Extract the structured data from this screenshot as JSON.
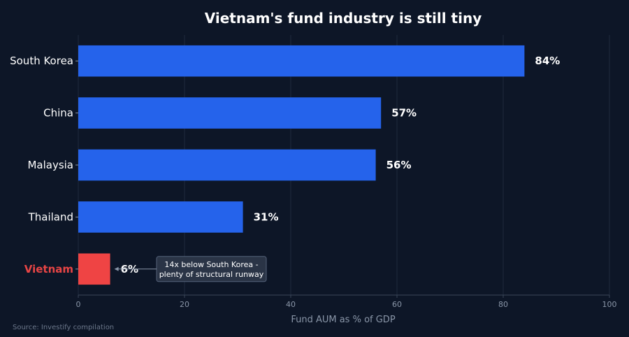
{
  "chart_data": {
    "type": "bar",
    "orientation": "horizontal",
    "title": "Vietnam's fund industry is still tiny",
    "xlabel": "Fund AUM as % of GDP",
    "ylabel": "",
    "xlim": [
      0,
      100
    ],
    "xticks": [
      0,
      20,
      40,
      60,
      80,
      100
    ],
    "grid": true,
    "categories": [
      "South Korea",
      "China",
      "Malaysia",
      "Thailand",
      "Vietnam"
    ],
    "values": [
      84,
      57,
      56,
      31,
      6
    ],
    "value_labels": [
      "84%",
      "57%",
      "56%",
      "31%",
      "6%"
    ],
    "highlight": "Vietnam",
    "colors": {
      "bar": "#2563eb",
      "highlight": "#ef4444",
      "background": "#0d1627"
    },
    "annotation": {
      "target": "Vietnam",
      "lines": [
        "14x below South Korea -",
        "plenty of structural runway"
      ]
    },
    "source": "Source: Investify compilation"
  }
}
